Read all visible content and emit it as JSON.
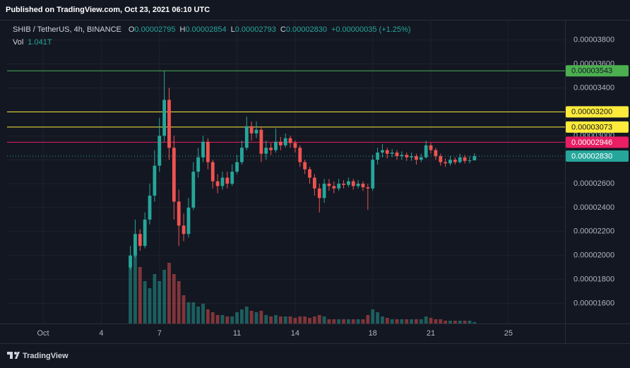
{
  "header": {
    "published": "Published on TradingView.com, Oct 23, 2021 06:10 UTC"
  },
  "chart_data": {
    "type": "candlestick",
    "symbol": "SHIB / TetherUS, 4h, BINANCE",
    "legend": [
      {
        "key": "O",
        "value": "0.00002795"
      },
      {
        "key": "H",
        "value": "0.00002854"
      },
      {
        "key": "L",
        "value": "0.00002793"
      },
      {
        "key": "C",
        "value": "0.00002830"
      }
    ],
    "change": "+0.00000035 (+1.25%)",
    "volume_label": "Vol",
    "volume_value": "1.041T",
    "up_color": "#26a69a",
    "down_color": "#ef5350",
    "x": [
      5.5,
      5.75,
      6,
      6.25,
      6.5,
      6.75,
      7,
      7.25,
      7.5,
      7.75,
      8,
      8.25,
      8.5,
      8.75,
      9,
      9.25,
      9.5,
      9.75,
      10,
      10.25,
      10.5,
      10.75,
      11,
      11.25,
      11.5,
      11.75,
      12,
      12.25,
      12.5,
      12.75,
      13,
      13.25,
      13.5,
      13.75,
      14,
      14.25,
      14.5,
      14.75,
      15,
      15.25,
      15.5,
      15.75,
      16,
      16.25,
      16.5,
      16.75,
      17,
      17.25,
      17.5,
      17.75,
      18,
      18.25,
      18.5,
      18.75,
      19,
      19.25,
      19.5,
      19.75,
      20,
      20.25,
      20.5,
      20.75,
      21,
      21.25,
      21.5,
      21.75,
      22,
      22.25,
      22.5,
      22.75,
      23,
      23.25
    ],
    "open": [
      1.9e-05,
      2e-05,
      2.18e-05,
      2.08e-05,
      2.3e-05,
      2.5e-05,
      2.75e-05,
      3e-05,
      3.3e-05,
      2.9e-05,
      2.45e-05,
      2.25e-05,
      2.18e-05,
      2.4e-05,
      2.7e-05,
      2.82e-05,
      2.95e-05,
      2.78e-05,
      2.62e-05,
      2.58e-05,
      2.65e-05,
      2.6e-05,
      2.7e-05,
      2.78e-05,
      2.9e-05,
      3.08e-05,
      3.02e-05,
      3.05e-05,
      2.85e-05,
      2.9e-05,
      2.88e-05,
      2.95e-05,
      2.92e-05,
      2.98e-05,
      2.94e-05,
      2.9e-05,
      2.78e-05,
      2.72e-05,
      2.65e-05,
      2.56e-05,
      2.48e-05,
      2.6e-05,
      2.58e-05,
      2.56e-05,
      2.6e-05,
      2.59e-05,
      2.62e-05,
      2.58e-05,
      2.6e-05,
      2.57e-05,
      2.56e-05,
      2.8e-05,
      2.86e-05,
      2.88e-05,
      2.85e-05,
      2.86e-05,
      2.83e-05,
      2.84e-05,
      2.82e-05,
      2.83e-05,
      2.8e-05,
      2.82e-05,
      2.92e-05,
      2.88e-05,
      2.83e-05,
      2.78e-05,
      2.77e-05,
      2.8e-05,
      2.78e-05,
      2.82e-05,
      2.79e-05,
      2.795e-05
    ],
    "high": [
      2.08e-05,
      2.3e-05,
      2.22e-05,
      2.36e-05,
      2.6e-05,
      2.88e-05,
      3.15e-05,
      3.543e-05,
      3.4e-05,
      3e-05,
      2.55e-05,
      2.35e-05,
      2.48e-05,
      2.78e-05,
      2.9e-05,
      3e-05,
      2.98e-05,
      2.8e-05,
      2.68e-05,
      2.7e-05,
      2.7e-05,
      2.76e-05,
      2.84e-05,
      2.96e-05,
      3.16e-05,
      3.12e-05,
      3.12e-05,
      3.08e-05,
      2.96e-05,
      2.94e-05,
      3.06e-05,
      2.99e-05,
      3.02e-05,
      3e-05,
      2.96e-05,
      2.92e-05,
      2.8e-05,
      2.74e-05,
      2.68e-05,
      2.6e-05,
      2.64e-05,
      2.64e-05,
      2.62e-05,
      2.64e-05,
      2.63e-05,
      2.65e-05,
      2.64e-05,
      2.63e-05,
      2.62e-05,
      2.6e-05,
      2.84e-05,
      2.9e-05,
      2.93e-05,
      2.9e-05,
      2.89e-05,
      2.88e-05,
      2.87e-05,
      2.86e-05,
      2.86e-05,
      2.85e-05,
      2.85e-05,
      2.96e-05,
      2.94e-05,
      2.9e-05,
      2.85e-05,
      2.81e-05,
      2.83e-05,
      2.82e-05,
      2.85e-05,
      2.84e-05,
      2.83e-05,
      2.854e-05
    ],
    "low": [
      1.88e-05,
      1.98e-05,
      2.04e-05,
      2.06e-05,
      2.26e-05,
      2.45e-05,
      2.7e-05,
      2.95e-05,
      2.8e-05,
      2.3e-05,
      2.08e-05,
      2.12e-05,
      2.15e-05,
      2.38e-05,
      2.65e-05,
      2.78e-05,
      2.72e-05,
      2.56e-05,
      2.52e-05,
      2.55e-05,
      2.56e-05,
      2.58e-05,
      2.68e-05,
      2.76e-05,
      2.88e-05,
      2.96e-05,
      2.98e-05,
      2.78e-05,
      2.8e-05,
      2.84e-05,
      2.86e-05,
      2.88e-05,
      2.9e-05,
      2.9e-05,
      2.86e-05,
      2.74e-05,
      2.68e-05,
      2.6e-05,
      2.5e-05,
      2.36e-05,
      2.44e-05,
      2.54e-05,
      2.52e-05,
      2.54e-05,
      2.56e-05,
      2.57e-05,
      2.55e-05,
      2.56e-05,
      2.54e-05,
      2.38e-05,
      2.54e-05,
      2.76e-05,
      2.82e-05,
      2.81e-05,
      2.82e-05,
      2.8e-05,
      2.8e-05,
      2.79e-05,
      2.79e-05,
      2.76e-05,
      2.78e-05,
      2.81e-05,
      2.85e-05,
      2.8e-05,
      2.75e-05,
      2.74e-05,
      2.75e-05,
      2.76e-05,
      2.77e-05,
      2.77e-05,
      2.77e-05,
      2.793e-05
    ],
    "close": [
      2e-05,
      2.18e-05,
      2.08e-05,
      2.3e-05,
      2.5e-05,
      2.75e-05,
      3e-05,
      3.3e-05,
      2.9e-05,
      2.45e-05,
      2.25e-05,
      2.18e-05,
      2.4e-05,
      2.7e-05,
      2.82e-05,
      2.95e-05,
      2.78e-05,
      2.62e-05,
      2.58e-05,
      2.65e-05,
      2.6e-05,
      2.7e-05,
      2.78e-05,
      2.9e-05,
      3.08e-05,
      3.02e-05,
      3.05e-05,
      2.85e-05,
      2.9e-05,
      2.88e-05,
      2.95e-05,
      2.92e-05,
      2.98e-05,
      2.94e-05,
      2.9e-05,
      2.78e-05,
      2.72e-05,
      2.65e-05,
      2.56e-05,
      2.48e-05,
      2.6e-05,
      2.58e-05,
      2.56e-05,
      2.6e-05,
      2.59e-05,
      2.62e-05,
      2.58e-05,
      2.6e-05,
      2.57e-05,
      2.56e-05,
      2.8e-05,
      2.86e-05,
      2.88e-05,
      2.85e-05,
      2.86e-05,
      2.83e-05,
      2.84e-05,
      2.82e-05,
      2.83e-05,
      2.8e-05,
      2.82e-05,
      2.92e-05,
      2.88e-05,
      2.83e-05,
      2.78e-05,
      2.77e-05,
      2.8e-05,
      2.78e-05,
      2.82e-05,
      2.79e-05,
      2.795e-05,
      2.83e-05
    ],
    "volume": [
      45,
      55,
      40,
      30,
      25,
      35,
      30,
      38,
      43,
      35,
      30,
      20,
      15,
      15,
      12,
      14,
      10,
      8,
      6,
      6,
      5,
      5,
      8,
      10,
      12,
      9,
      8,
      9,
      6,
      5,
      6,
      5,
      5,
      5,
      4,
      5,
      5,
      4,
      5,
      6,
      5,
      3,
      3,
      3,
      3,
      3,
      3,
      3,
      3,
      6,
      10,
      8,
      5,
      4,
      3,
      3,
      3,
      3,
      3,
      3,
      3,
      5,
      4,
      3,
      3,
      2,
      2,
      2,
      2,
      2,
      2,
      1.041
    ],
    "volume_lim": [
      0,
      100
    ],
    "xlim": [
      -0.86,
      27.92
    ],
    "xticks": [
      {
        "value": 1,
        "label": "Oct"
      },
      4,
      7,
      11,
      14,
      18,
      21,
      25
    ],
    "ylim": [
      1.432e-05,
      3.969e-05
    ],
    "yticks": [
      {
        "value": 1.6e-05,
        "label": "0.00001600"
      },
      {
        "value": 1.8e-05,
        "label": "0.00001800"
      },
      {
        "value": 2e-05,
        "label": "0.00002000"
      },
      {
        "value": 2.2e-05,
        "label": "0.00002200"
      },
      {
        "value": 2.4e-05,
        "label": "0.00002400"
      },
      {
        "value": 2.6e-05,
        "label": "0.00002600"
      },
      {
        "value": 2.8e-05,
        "label": "0.00002800"
      },
      {
        "value": 3e-05,
        "label": "0.00003000"
      },
      {
        "value": 3.2e-05,
        "label": "0.00003200"
      },
      {
        "value": 3.4e-05,
        "label": "0.00003400"
      },
      {
        "value": 3.6e-05,
        "label": "0.00003600"
      },
      {
        "value": 3.8e-05,
        "label": "0.00003800"
      }
    ],
    "grid": true,
    "levels": [
      {
        "value": 3.543e-05,
        "label": "0.00003543",
        "color": "#4caf50",
        "text_color": "#131722"
      },
      {
        "value": 3.2e-05,
        "label": "0.00003200",
        "color": "#ffeb3b",
        "text_color": "#131722"
      },
      {
        "value": 3.073e-05,
        "label": "0.00003073",
        "color": "#ffeb3b",
        "text_color": "#131722"
      },
      {
        "value": 2.946e-05,
        "label": "0.00002946",
        "color": "#e91e63",
        "text_color": "#ffffff"
      }
    ],
    "last_price": {
      "value": 2.83e-05,
      "label": "0.00002830",
      "color": "#26a69a",
      "text_color": "#ffffff"
    }
  },
  "footer": {
    "brand": "TradingView"
  }
}
